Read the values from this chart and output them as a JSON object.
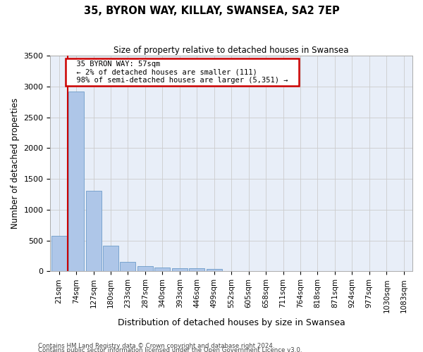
{
  "title": "35, BYRON WAY, KILLAY, SWANSEA, SA2 7EP",
  "subtitle": "Size of property relative to detached houses in Swansea",
  "xlabel": "Distribution of detached houses by size in Swansea",
  "ylabel": "Number of detached properties",
  "footer_line1": "Contains HM Land Registry data © Crown copyright and database right 2024.",
  "footer_line2": "Contains public sector information licensed under the Open Government Licence v3.0.",
  "bin_labels": [
    "21sqm",
    "74sqm",
    "127sqm",
    "180sqm",
    "233sqm",
    "287sqm",
    "340sqm",
    "393sqm",
    "446sqm",
    "499sqm",
    "552sqm",
    "605sqm",
    "658sqm",
    "711sqm",
    "764sqm",
    "818sqm",
    "871sqm",
    "924sqm",
    "977sqm",
    "1030sqm",
    "1083sqm"
  ],
  "bar_heights": [
    570,
    2920,
    1310,
    410,
    155,
    85,
    60,
    55,
    45,
    38,
    0,
    0,
    0,
    0,
    0,
    0,
    0,
    0,
    0,
    0,
    0
  ],
  "bar_color": "#aec6e8",
  "bar_edge_color": "#5a8fc2",
  "grid_color": "#cccccc",
  "bg_color": "#e8eef8",
  "property_label": "35 BYRON WAY: 57sqm",
  "annotation_line1": "← 2% of detached houses are smaller (111)",
  "annotation_line2": "98% of semi-detached houses are larger (5,351) →",
  "vline_color": "#cc0000",
  "annotation_box_color": "#cc0000",
  "ylim": [
    0,
    3500
  ],
  "yticks": [
    0,
    500,
    1000,
    1500,
    2000,
    2500,
    3000,
    3500
  ],
  "vline_x": 0.5
}
